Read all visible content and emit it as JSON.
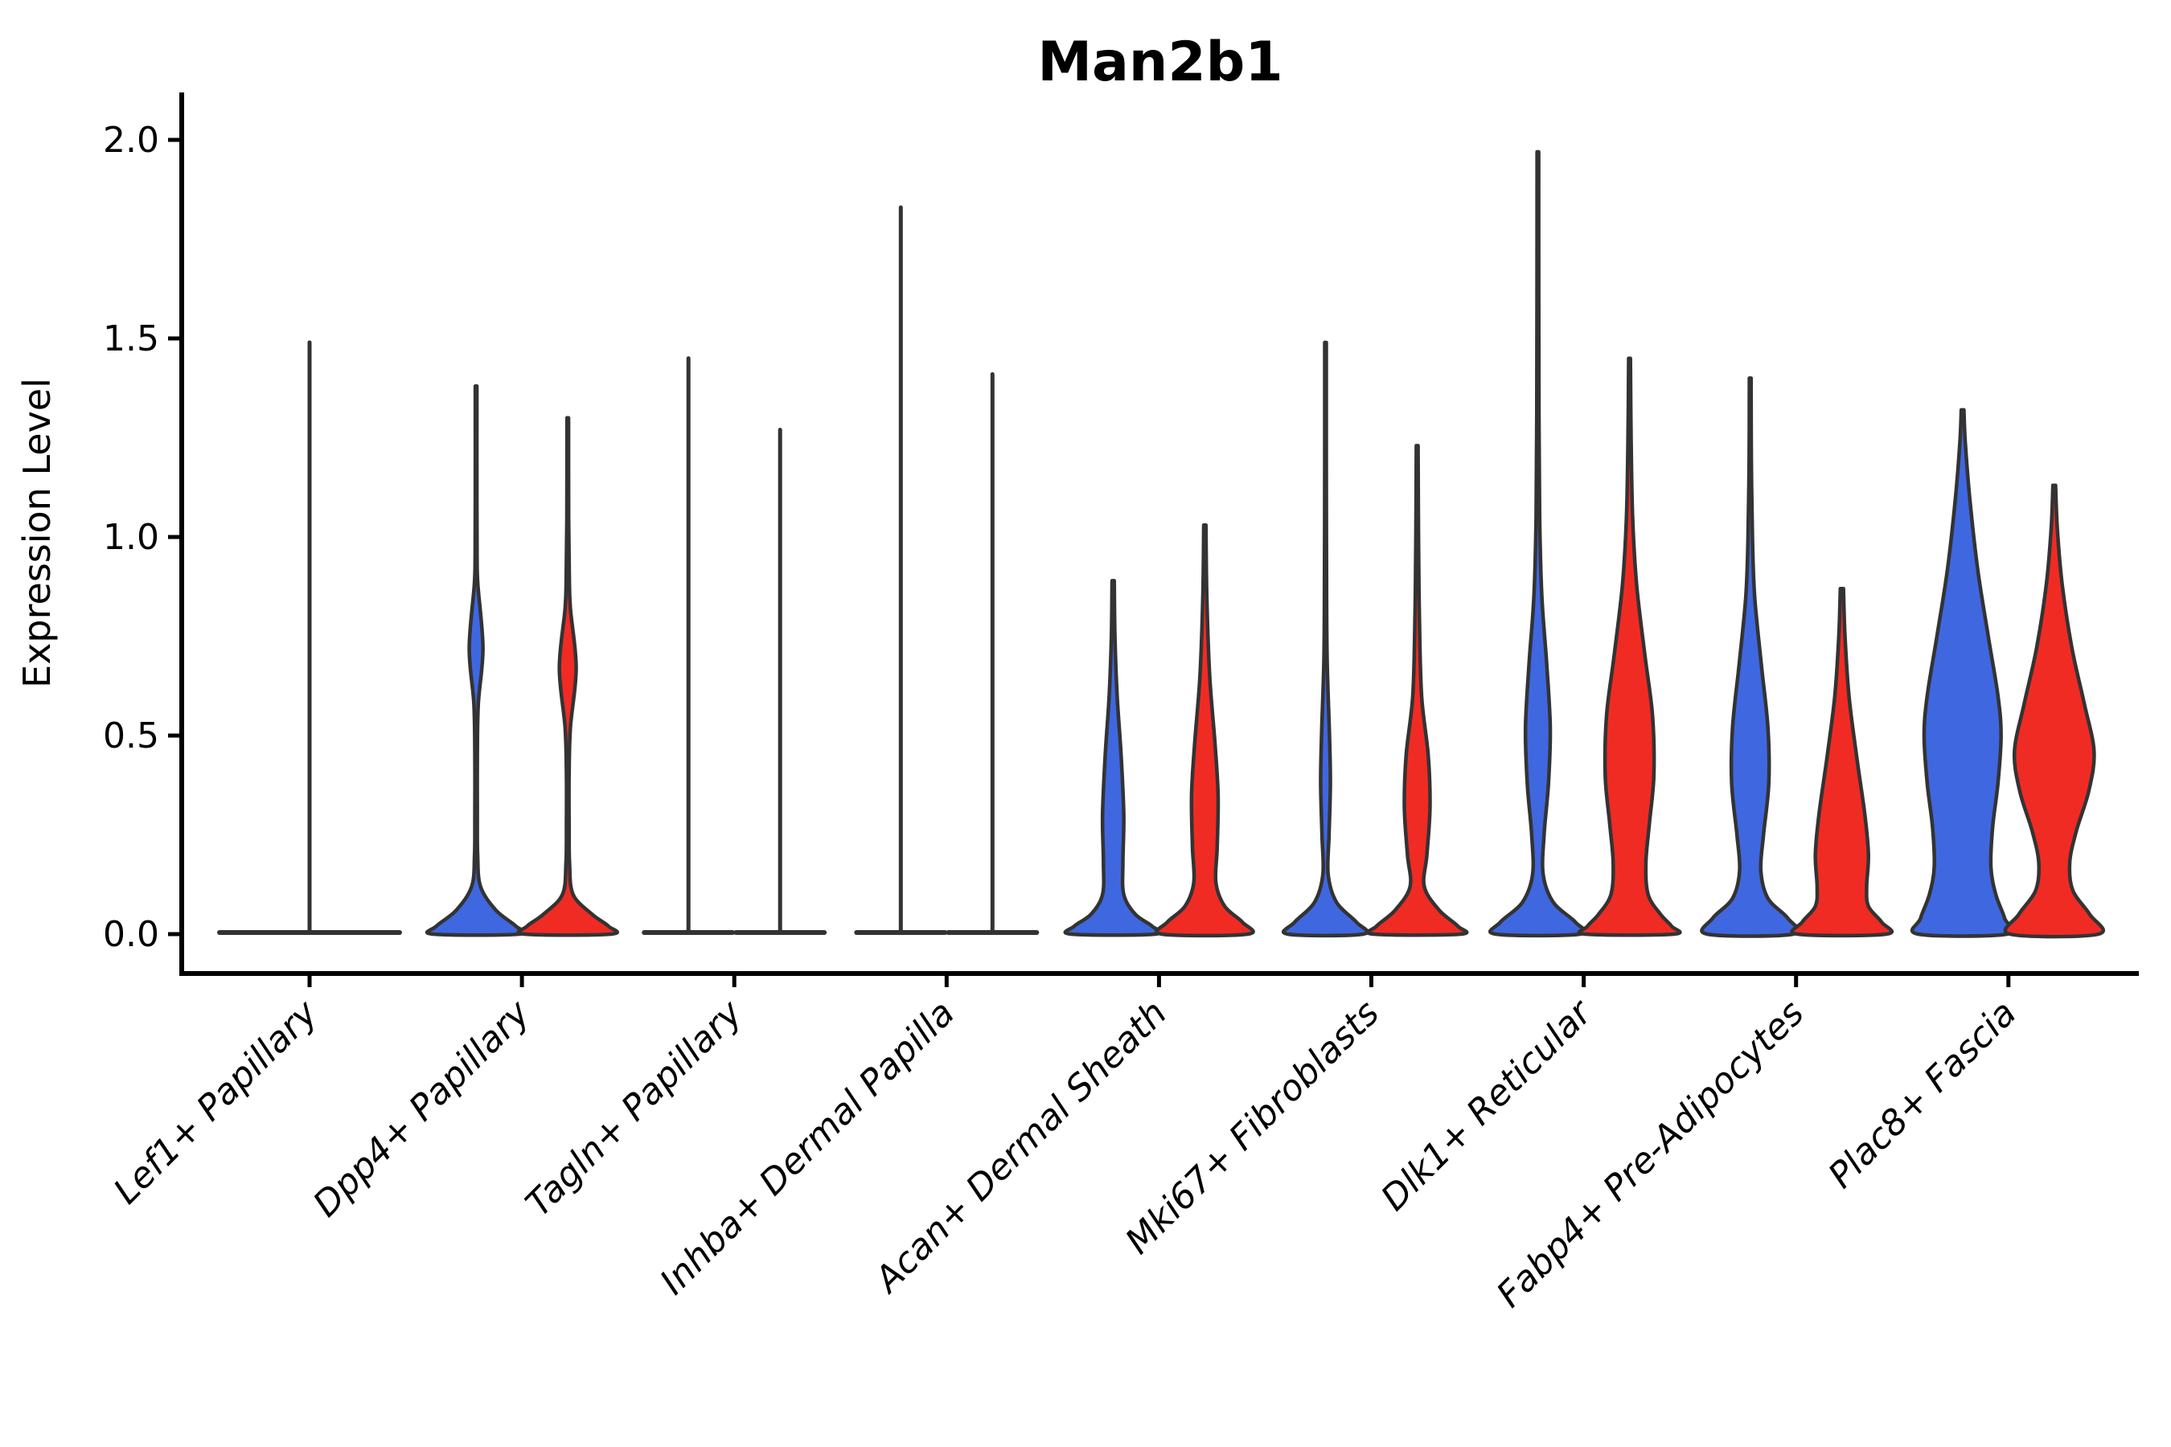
{
  "chart_data": {
    "type": "violin",
    "title": "Man2b1",
    "xlabel": "",
    "ylabel": "Expression Level",
    "ylim": [
      -0.1,
      2.12
    ],
    "yticks": [
      0.0,
      0.5,
      1.0,
      1.5,
      2.0
    ],
    "ytick_labels": [
      "0.0",
      "0.5",
      "1.0",
      "1.5",
      "2.0"
    ],
    "grid": "off",
    "legend": "none",
    "categories": [
      "Lef1+ Papillary",
      "Dpp4+ Papillary",
      "Tagln+ Papillary",
      "Inhba+ Dermal Papilla",
      "Acan+ Dermal Sheath",
      "Mki67+ Fibroblasts",
      "Dlk1+ Reticular",
      "Fabp4+ Pre-Adipocytes",
      "Plac8+ Fascia"
    ],
    "series": [
      "blue",
      "red"
    ],
    "colors": {
      "blue": "#3F67E0",
      "red": "#F02B24",
      "outline": "#333333",
      "axis": "#000000"
    },
    "groups": [
      {
        "category": "Lef1+ Papillary",
        "violins": [
          {
            "series": "single",
            "flat": true,
            "span": "full",
            "max": 1.49
          }
        ]
      },
      {
        "category": "Dpp4+ Papillary",
        "violins": [
          {
            "series": "blue",
            "flat": false,
            "max": 1.38,
            "profile": [
              [
                1.38,
                0.018
              ],
              [
                1.1,
                0.018
              ],
              [
                0.95,
                0.022
              ],
              [
                0.88,
                0.04
              ],
              [
                0.72,
                0.155
              ],
              [
                0.58,
                0.05
              ],
              [
                0.45,
                0.028
              ],
              [
                0.3,
                0.028
              ],
              [
                0.2,
                0.035
              ],
              [
                0.12,
                0.1
              ],
              [
                0.06,
                0.45
              ],
              [
                0.02,
                0.9
              ],
              [
                0.0,
                0.97
              ]
            ]
          },
          {
            "series": "red",
            "flat": false,
            "max": 1.3,
            "profile": [
              [
                1.3,
                0.018
              ],
              [
                1.05,
                0.02
              ],
              [
                0.9,
                0.035
              ],
              [
                0.82,
                0.06
              ],
              [
                0.67,
                0.19
              ],
              [
                0.52,
                0.06
              ],
              [
                0.4,
                0.03
              ],
              [
                0.28,
                0.03
              ],
              [
                0.18,
                0.04
              ],
              [
                0.1,
                0.12
              ],
              [
                0.05,
                0.55
              ],
              [
                0.02,
                0.92
              ],
              [
                0.0,
                0.98
              ]
            ]
          }
        ]
      },
      {
        "category": "Tagln+ Papillary",
        "violins": [
          {
            "series": "blue",
            "flat": true,
            "max": 1.45
          },
          {
            "series": "red",
            "flat": true,
            "max": 1.27
          }
        ]
      },
      {
        "category": "Inhba+ Dermal Papilla",
        "violins": [
          {
            "series": "blue",
            "flat": true,
            "max": 1.83
          },
          {
            "series": "red",
            "flat": true,
            "max": 1.41
          }
        ]
      },
      {
        "category": "Acan+ Dermal Sheath",
        "violins": [
          {
            "series": "blue",
            "flat": false,
            "max": 0.89,
            "profile": [
              [
                0.89,
                0.025
              ],
              [
                0.75,
                0.04
              ],
              [
                0.6,
                0.09
              ],
              [
                0.45,
                0.18
              ],
              [
                0.3,
                0.24
              ],
              [
                0.18,
                0.22
              ],
              [
                0.1,
                0.24
              ],
              [
                0.05,
                0.5
              ],
              [
                0.02,
                0.88
              ],
              [
                0.0,
                0.95
              ]
            ]
          },
          {
            "series": "red",
            "flat": false,
            "max": 1.03,
            "profile": [
              [
                1.03,
                0.025
              ],
              [
                0.85,
                0.045
              ],
              [
                0.65,
                0.11
              ],
              [
                0.48,
                0.23
              ],
              [
                0.35,
                0.3
              ],
              [
                0.22,
                0.28
              ],
              [
                0.13,
                0.25
              ],
              [
                0.07,
                0.45
              ],
              [
                0.03,
                0.85
              ],
              [
                0.0,
                0.97
              ]
            ]
          }
        ]
      },
      {
        "category": "Mki67+ Fibroblasts",
        "violins": [
          {
            "series": "blue",
            "flat": false,
            "max": 1.49,
            "profile": [
              [
                1.49,
                0.018
              ],
              [
                1.2,
                0.018
              ],
              [
                0.95,
                0.022
              ],
              [
                0.7,
                0.035
              ],
              [
                0.5,
                0.09
              ],
              [
                0.38,
                0.11
              ],
              [
                0.25,
                0.08
              ],
              [
                0.15,
                0.06
              ],
              [
                0.08,
                0.25
              ],
              [
                0.03,
                0.7
              ],
              [
                0.0,
                0.85
              ]
            ]
          },
          {
            "series": "red",
            "flat": false,
            "max": 1.23,
            "profile": [
              [
                1.23,
                0.02
              ],
              [
                1.0,
                0.03
              ],
              [
                0.8,
                0.05
              ],
              [
                0.6,
                0.1
              ],
              [
                0.45,
                0.25
              ],
              [
                0.32,
                0.29
              ],
              [
                0.2,
                0.22
              ],
              [
                0.12,
                0.16
              ],
              [
                0.06,
                0.5
              ],
              [
                0.02,
                0.92
              ],
              [
                0.0,
                0.98
              ]
            ]
          }
        ]
      },
      {
        "category": "Dlk1+ Reticular",
        "violins": [
          {
            "series": "blue",
            "flat": false,
            "max": 1.97,
            "profile": [
              [
                1.97,
                0.018
              ],
              [
                1.6,
                0.02
              ],
              [
                1.3,
                0.025
              ],
              [
                1.05,
                0.04
              ],
              [
                0.85,
                0.09
              ],
              [
                0.68,
                0.2
              ],
              [
                0.52,
                0.28
              ],
              [
                0.38,
                0.24
              ],
              [
                0.25,
                0.14
              ],
              [
                0.15,
                0.12
              ],
              [
                0.08,
                0.35
              ],
              [
                0.03,
                0.85
              ],
              [
                0.0,
                0.95
              ]
            ]
          },
          {
            "series": "red",
            "flat": false,
            "max": 1.45,
            "profile": [
              [
                1.45,
                0.02
              ],
              [
                1.25,
                0.035
              ],
              [
                1.05,
                0.07
              ],
              [
                0.88,
                0.16
              ],
              [
                0.7,
                0.35
              ],
              [
                0.55,
                0.52
              ],
              [
                0.4,
                0.55
              ],
              [
                0.28,
                0.45
              ],
              [
                0.18,
                0.37
              ],
              [
                0.1,
                0.42
              ],
              [
                0.05,
                0.7
              ],
              [
                0.02,
                0.95
              ],
              [
                0.0,
                1.0
              ]
            ]
          }
        ]
      },
      {
        "category": "Fabp4+ Pre-Adipocytes",
        "violins": [
          {
            "series": "blue",
            "flat": false,
            "max": 1.4,
            "profile": [
              [
                1.4,
                0.02
              ],
              [
                1.2,
                0.025
              ],
              [
                1.0,
                0.05
              ],
              [
                0.85,
                0.1
              ],
              [
                0.68,
                0.25
              ],
              [
                0.52,
                0.4
              ],
              [
                0.38,
                0.42
              ],
              [
                0.25,
                0.3
              ],
              [
                0.16,
                0.24
              ],
              [
                0.09,
                0.4
              ],
              [
                0.04,
                0.85
              ],
              [
                0.0,
                0.97
              ]
            ]
          },
          {
            "series": "red",
            "flat": false,
            "max": 0.87,
            "profile": [
              [
                0.87,
                0.035
              ],
              [
                0.75,
                0.07
              ],
              [
                0.6,
                0.16
              ],
              [
                0.45,
                0.33
              ],
              [
                0.3,
                0.52
              ],
              [
                0.2,
                0.6
              ],
              [
                0.12,
                0.56
              ],
              [
                0.07,
                0.6
              ],
              [
                0.03,
                0.9
              ],
              [
                0.0,
                1.0
              ]
            ]
          }
        ]
      },
      {
        "category": "Plac8+ Fascia",
        "violins": [
          {
            "series": "blue",
            "flat": false,
            "max": 1.32,
            "profile": [
              [
                1.32,
                0.03
              ],
              [
                1.24,
                0.06
              ],
              [
                1.1,
                0.16
              ],
              [
                0.92,
                0.34
              ],
              [
                0.75,
                0.58
              ],
              [
                0.6,
                0.8
              ],
              [
                0.5,
                0.87
              ],
              [
                0.38,
                0.8
              ],
              [
                0.27,
                0.68
              ],
              [
                0.17,
                0.64
              ],
              [
                0.1,
                0.75
              ],
              [
                0.04,
                0.95
              ],
              [
                0.0,
                1.0
              ]
            ]
          },
          {
            "series": "red",
            "flat": false,
            "max": 1.13,
            "profile": [
              [
                1.13,
                0.03
              ],
              [
                1.02,
                0.07
              ],
              [
                0.88,
                0.18
              ],
              [
                0.72,
                0.4
              ],
              [
                0.58,
                0.68
              ],
              [
                0.46,
                0.9
              ],
              [
                0.36,
                0.78
              ],
              [
                0.26,
                0.5
              ],
              [
                0.18,
                0.35
              ],
              [
                0.11,
                0.42
              ],
              [
                0.05,
                0.8
              ],
              [
                0.0,
                1.0
              ]
            ]
          }
        ]
      }
    ],
    "max_expression_per_violin": {
      "Lef1+ Papillary": [
        1.49
      ],
      "Dpp4+ Papillary": [
        1.38,
        1.3
      ],
      "Tagln+ Papillary": [
        1.45,
        1.27
      ],
      "Inhba+ Dermal Papilla": [
        1.83,
        1.41
      ],
      "Acan+ Dermal Sheath": [
        0.89,
        1.03
      ],
      "Mki67+ Fibroblasts": [
        1.49,
        1.23
      ],
      "Dlk1+ Reticular": [
        1.97,
        1.45
      ],
      "Fabp4+ Pre-Adipocytes": [
        1.4,
        0.87
      ],
      "Plac8+ Fascia": [
        1.32,
        1.13
      ]
    }
  }
}
